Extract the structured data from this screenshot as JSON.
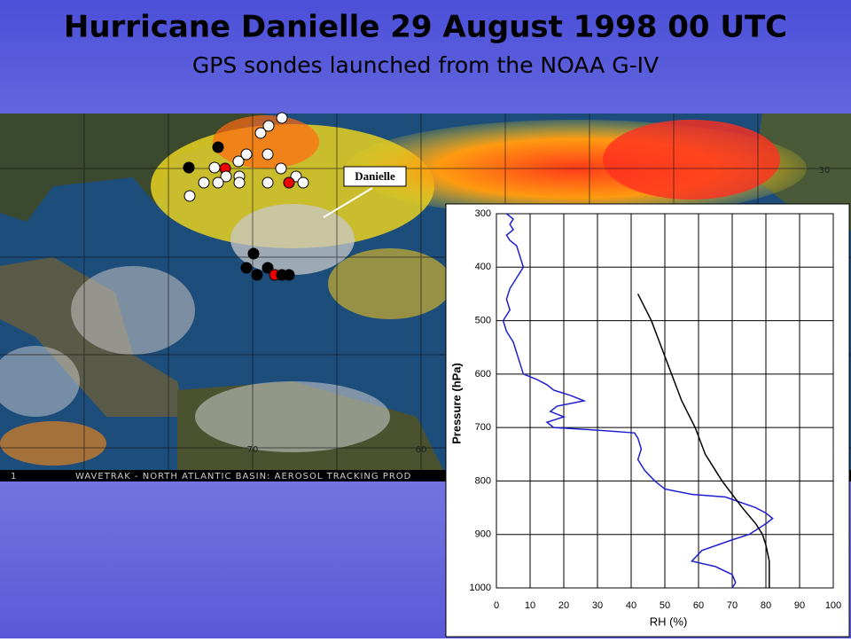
{
  "title": "Hurricane Danielle 29 August 1998 00 UTC",
  "subtitle": "GPS sondes launched from the NOAA G-IV",
  "map": {
    "storm_label": "Danielle",
    "banner": "WAVETRAK - NORTH ATLANTIC BASIN: AEROSOL TRACKING PROD",
    "frame": "1",
    "lon_labels": [
      "70",
      "60",
      "30"
    ]
  },
  "chart_data": {
    "type": "line",
    "xlabel": "RH (%)",
    "ylabel": "Pressure (hPa)",
    "xlim": [
      0,
      100
    ],
    "xticks": [
      0,
      10,
      20,
      30,
      40,
      50,
      60,
      70,
      80,
      90,
      100
    ],
    "ylim": [
      1000,
      300
    ],
    "yticks": [
      300,
      400,
      500,
      600,
      700,
      800,
      900,
      1000
    ],
    "grid": true,
    "series": [
      {
        "color": "#1f1fd0",
        "x": [
          3,
          5,
          4,
          5,
          3,
          4,
          6,
          7,
          8,
          6,
          4,
          3,
          4,
          2,
          3,
          5,
          6,
          7,
          8,
          12,
          15,
          17,
          22,
          26,
          18,
          16,
          20,
          15,
          17,
          30,
          41,
          42,
          43,
          42,
          44,
          47,
          50,
          58,
          68,
          77,
          80,
          82,
          80,
          75,
          70,
          61,
          58,
          65,
          70,
          71,
          70
        ],
        "values": [
          300,
          310,
          320,
          330,
          340,
          350,
          360,
          380,
          400,
          420,
          440,
          460,
          480,
          500,
          520,
          540,
          560,
          580,
          600,
          610,
          620,
          630,
          640,
          650,
          660,
          670,
          680,
          690,
          700,
          705,
          710,
          720,
          740,
          760,
          780,
          800,
          815,
          825,
          830,
          850,
          860,
          870,
          880,
          900,
          910,
          930,
          950,
          960,
          975,
          990,
          1000
        ]
      },
      {
        "color": "#000000",
        "x": [
          42,
          46,
          49,
          52,
          55,
          59,
          62,
          67,
          73,
          77,
          79,
          80,
          81,
          81
        ],
        "values": [
          450,
          500,
          550,
          600,
          650,
          700,
          750,
          800,
          850,
          880,
          900,
          920,
          950,
          1000
        ]
      }
    ]
  }
}
